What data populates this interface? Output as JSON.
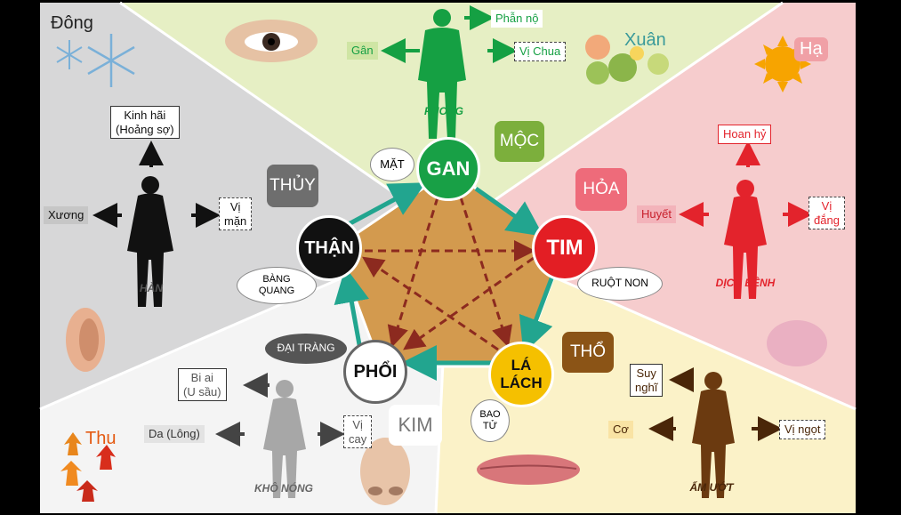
{
  "seasons": {
    "dong": "Đông",
    "xuan": "Xuân",
    "ha": "Hạ",
    "thu": "Thu"
  },
  "elements": {
    "moc": "MỘC",
    "hoa": "HỎA",
    "tho": "THỔ",
    "kim": "KIM",
    "thuy": "THỦY"
  },
  "organs": {
    "gan": "GAN",
    "tim": "TIM",
    "la_lach": "LÁ\nLÁCH",
    "phoi": "PHỔI",
    "than": "THẬN"
  },
  "paired": {
    "mat": "MẶT",
    "ruot_non": "RUỘT NON",
    "bao_tu": "BAO\nTỬ",
    "dai_trang": "ĐẠI TRÀNG",
    "bang_quang": "BÀNG\nQUANG"
  },
  "personas": {
    "phong": "PHONG",
    "dich_benh": "DỊCH BỆNH",
    "am_uot": "ẨM ƯỚT",
    "kho_nong": "KHÔ NÓNG",
    "han": "HÀN"
  },
  "wood_branch": {
    "emotion": "Phẫn nộ",
    "tissue": "Gân",
    "taste": "Vị Chua"
  },
  "fire_branch": {
    "emotion": "Hoan hỷ",
    "tissue": "Huyết",
    "taste": "Vị\nđắng"
  },
  "earth_branch": {
    "emotion": "Suy\nnghĩ",
    "tissue": "Cơ",
    "taste": "Vị ngọt"
  },
  "metal_branch": {
    "emotion": "Bi ai\n(U sầu)",
    "tissue": "Da (Lông)",
    "taste": "Vị\ncay"
  },
  "water_branch": {
    "emotion": "Kinh hãi\n(Hoảng sợ)",
    "tissue": "Xương",
    "taste": "Vị\nmặn"
  },
  "colors": {
    "wood": "#17a34a",
    "fire": "#e3232c",
    "earth": "#f6c400",
    "metal": "#ffffff",
    "water": "#111111",
    "generating_arrow": "#22a58f",
    "controlling_arrow": "#8c2a1f"
  }
}
